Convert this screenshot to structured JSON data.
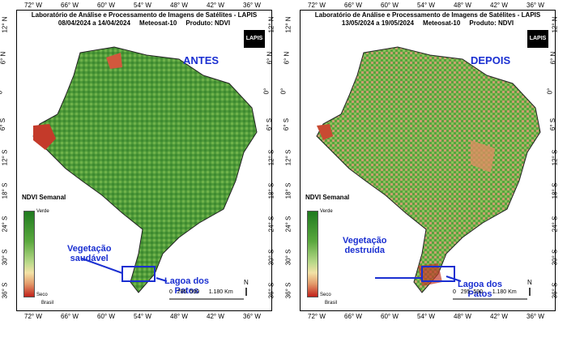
{
  "panels": [
    {
      "header_line1": "Laboratório de Análise e Processamento de Imagens de Satélites - LAPIS",
      "dates": "08/04/2024  a  14/04/2024",
      "satellite": "Meteosat-10",
      "product": "Produto: NDVI",
      "big_label": "ANTES",
      "annotation": "Vegetação\nsaudável",
      "annotation_l1": "Vegetação",
      "annotation_l2": "saudável",
      "lagoa_l1": "Lagoa dos",
      "lagoa_l2": "Patos"
    },
    {
      "header_line1": "Laboratório de Análise e Processamento de Imagens de Satélites - LAPIS",
      "dates": "13/05/2024  a  19/05/2024",
      "satellite": "Meteosat-10",
      "product": "Produto: NDVI",
      "big_label": "DEPOIS",
      "annotation_l1": "Vegetação",
      "annotation_l2": "destruída",
      "lagoa_l1": "Lagoa dos",
      "lagoa_l2": "Patos"
    }
  ],
  "logo": "LAPIS",
  "legend": {
    "title": "NDVI Semanal",
    "top": "Verde",
    "bottom": "Seco"
  },
  "lon_ticks": [
    "72° W",
    "66° W",
    "60° W",
    "54° W",
    "48° W",
    "42° W",
    "36° W"
  ],
  "lat_ticks": [
    "12° N",
    "6° N",
    "0°",
    "6° S",
    "12° S",
    "18° S",
    "24° S",
    "30° S",
    "36° S"
  ],
  "scale": {
    "labels": [
      "0",
      "295",
      "590",
      "1.180 Km"
    ]
  },
  "north": "N",
  "brasil": "Brasil"
}
